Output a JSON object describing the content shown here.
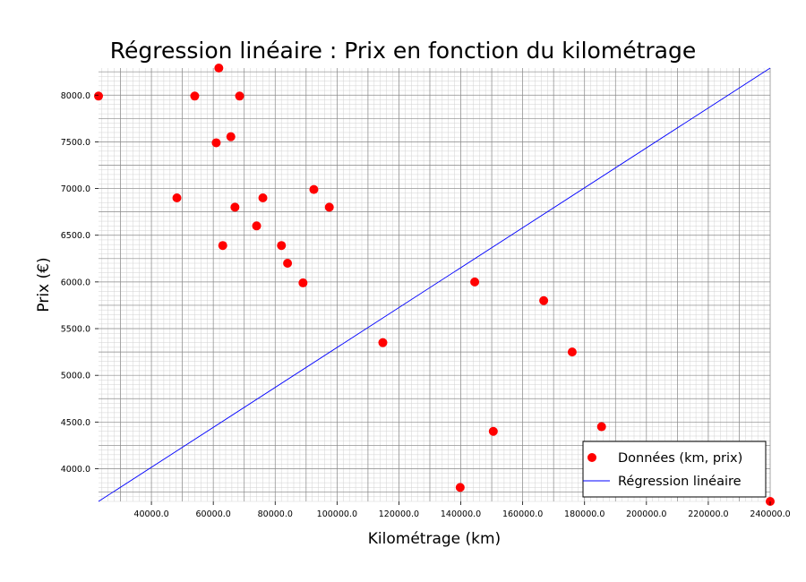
{
  "chart_data": {
    "type": "scatter",
    "title": "Régression linéaire : Prix en fonction du kilométrage",
    "xlabel": "Kilométrage (km)",
    "ylabel": "Prix (€)",
    "xlim": [
      22899,
      240000
    ],
    "ylim": [
      3650,
      8290
    ],
    "x_ticks": [
      40000,
      60000,
      80000,
      100000,
      120000,
      140000,
      160000,
      180000,
      200000,
      220000,
      240000
    ],
    "x_tick_labels": [
      "40000.0",
      "60000.0",
      "80000.0",
      "100000.0",
      "120000.0",
      "140000.0",
      "160000.0",
      "180000.0",
      "200000.0",
      "220000.0",
      "240000.0"
    ],
    "y_ticks": [
      4000,
      4500,
      5000,
      5500,
      6000,
      6500,
      7000,
      7500,
      8000
    ],
    "y_tick_labels": [
      "4000.0",
      "4500.0",
      "5000.0",
      "5500.0",
      "6000.0",
      "6500.0",
      "7000.0",
      "7500.0",
      "8000.0"
    ],
    "grid": true,
    "legend_position": "bottom-right",
    "series": [
      {
        "name": "Données (km, prix)",
        "kind": "scatter",
        "color": "#ff0000",
        "points": [
          [
            22899,
            7990
          ],
          [
            48235,
            6900
          ],
          [
            54000,
            7990
          ],
          [
            61789,
            8290
          ],
          [
            60949,
            7490
          ],
          [
            63060,
            6390
          ],
          [
            65674,
            7555
          ],
          [
            67000,
            6800
          ],
          [
            68500,
            7990
          ],
          [
            74000,
            6600
          ],
          [
            76025,
            6900
          ],
          [
            82029,
            6390
          ],
          [
            84000,
            6200
          ],
          [
            89000,
            5990
          ],
          [
            92500,
            6990
          ],
          [
            97500,
            6800
          ],
          [
            114800,
            5350
          ],
          [
            139800,
            3800
          ],
          [
            144500,
            6000
          ],
          [
            150500,
            4400
          ],
          [
            166800,
            5800
          ],
          [
            176000,
            5250
          ],
          [
            185500,
            4450
          ],
          [
            240000,
            3650
          ]
        ]
      },
      {
        "name": "Régression linéaire",
        "kind": "line",
        "color": "#0000ff",
        "points": [
          [
            22899,
            3650
          ],
          [
            240000,
            8290
          ]
        ]
      }
    ]
  }
}
